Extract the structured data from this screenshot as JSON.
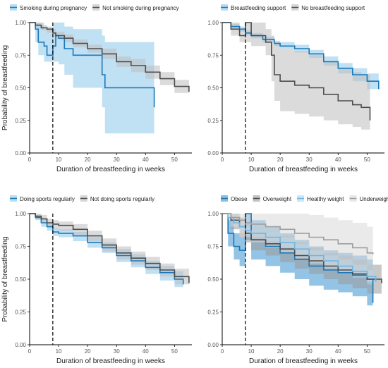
{
  "colors": {
    "blue": "#1a78b8",
    "dark": "#4d4d4d",
    "light_blue": "#7fc2ea",
    "light_gray": "#bdbdbd"
  },
  "chart_data": [
    {
      "type": "line",
      "xlabel": "Duration of breastfeeding in weeks",
      "ylabel": "Probability of breastfeeding",
      "xlim": [
        0,
        56
      ],
      "ylim": [
        0,
        1
      ],
      "xticks": [
        0,
        10,
        20,
        30,
        40,
        50
      ],
      "yticks": [
        "0.00",
        "0.25",
        "0.50",
        "0.75",
        "1.00"
      ],
      "vline_x": 8,
      "legend_position": "top",
      "series": [
        {
          "name": "Smoking during pregnancy",
          "color": "#1a78b8",
          "fill": "#8cc6ea",
          "x": [
            0,
            2,
            3,
            5,
            6,
            8,
            9,
            10,
            12,
            15,
            25,
            26,
            43
          ],
          "y": [
            1.0,
            0.95,
            0.85,
            0.82,
            0.75,
            0.82,
            0.9,
            0.88,
            0.8,
            0.75,
            0.6,
            0.5,
            0.35
          ],
          "lower": [
            1.0,
            0.85,
            0.75,
            0.7,
            0.7,
            0.7,
            0.7,
            0.68,
            0.6,
            0.5,
            0.35,
            0.15,
            0.15
          ],
          "upper": [
            1.0,
            1.0,
            1.0,
            0.95,
            0.95,
            1.0,
            1.0,
            1.0,
            0.97,
            0.95,
            0.9,
            0.85,
            0.85
          ]
        },
        {
          "name": "Not smoking during pregnancy",
          "color": "#4d4d4d",
          "fill": "#bdbdbd",
          "x": [
            0,
            2,
            4,
            6,
            8,
            9,
            12,
            15,
            20,
            25,
            30,
            35,
            40,
            45,
            50,
            55
          ],
          "y": [
            1.0,
            0.98,
            0.96,
            0.95,
            0.92,
            0.9,
            0.88,
            0.84,
            0.8,
            0.76,
            0.7,
            0.67,
            0.62,
            0.57,
            0.51,
            0.47
          ],
          "lower": [
            1.0,
            0.96,
            0.94,
            0.92,
            0.89,
            0.87,
            0.85,
            0.81,
            0.77,
            0.72,
            0.66,
            0.62,
            0.57,
            0.52,
            0.46,
            0.42
          ],
          "upper": [
            1.0,
            1.0,
            0.98,
            0.97,
            0.95,
            0.93,
            0.91,
            0.87,
            0.83,
            0.8,
            0.74,
            0.72,
            0.67,
            0.62,
            0.56,
            0.52
          ]
        }
      ]
    },
    {
      "type": "line",
      "xlabel": "Duration of breastfeeding in weeks",
      "ylabel": "",
      "xlim": [
        0,
        56
      ],
      "ylim": [
        0,
        1
      ],
      "xticks": [
        0,
        10,
        20,
        30,
        40,
        50
      ],
      "yticks": [
        "0.00",
        "0.25",
        "0.50",
        "0.75",
        "1.00"
      ],
      "vline_x": 8,
      "legend_position": "top",
      "series": [
        {
          "name": "Breastfeeding support",
          "color": "#1a78b8",
          "fill": "#8cc6ea",
          "x": [
            0,
            3,
            6,
            8,
            10,
            14,
            18,
            20,
            25,
            30,
            35,
            40,
            45,
            50,
            54
          ],
          "y": [
            1.0,
            0.97,
            0.95,
            0.92,
            0.9,
            0.87,
            0.84,
            0.82,
            0.8,
            0.76,
            0.7,
            0.65,
            0.6,
            0.55,
            0.49
          ],
          "lower": [
            1.0,
            0.95,
            0.93,
            0.9,
            0.88,
            0.85,
            0.82,
            0.8,
            0.77,
            0.73,
            0.67,
            0.61,
            0.55,
            0.49,
            0.43
          ],
          "upper": [
            1.0,
            0.99,
            0.97,
            0.94,
            0.92,
            0.89,
            0.86,
            0.85,
            0.83,
            0.79,
            0.74,
            0.69,
            0.65,
            0.61,
            0.55
          ]
        },
        {
          "name": "No breastfeeding support",
          "color": "#4d4d4d",
          "fill": "#bdbdbd",
          "x": [
            0,
            3,
            6,
            8,
            10,
            15,
            17,
            18,
            20,
            25,
            30,
            35,
            40,
            45,
            48,
            51
          ],
          "y": [
            1.0,
            0.95,
            0.9,
            1.0,
            0.9,
            0.85,
            0.75,
            0.6,
            0.55,
            0.52,
            0.5,
            0.45,
            0.4,
            0.37,
            0.35,
            0.25
          ],
          "lower": [
            1.0,
            0.9,
            0.85,
            0.85,
            0.82,
            0.75,
            0.55,
            0.4,
            0.32,
            0.3,
            0.28,
            0.25,
            0.22,
            0.2,
            0.18,
            0.15
          ],
          "upper": [
            1.0,
            1.0,
            0.95,
            1.0,
            1.0,
            0.95,
            0.9,
            0.85,
            0.8,
            0.78,
            0.75,
            0.7,
            0.65,
            0.62,
            0.6,
            0.55
          ]
        }
      ]
    },
    {
      "type": "line",
      "xlabel": "Duration of breastfeeding in weeks",
      "ylabel": "Probability of breastfeeding",
      "xlim": [
        0,
        56
      ],
      "ylim": [
        0,
        1
      ],
      "xticks": [
        0,
        10,
        20,
        30,
        40,
        50
      ],
      "yticks": [
        "0.00",
        "0.25",
        "0.50",
        "0.75",
        "1.00"
      ],
      "vline_x": 8,
      "legend_position": "top",
      "series": [
        {
          "name": "Doing sports regularly",
          "color": "#1a78b8",
          "fill": "#8cc6ea",
          "x": [
            0,
            2,
            4,
            6,
            8,
            10,
            15,
            20,
            25,
            30,
            35,
            40,
            45,
            50,
            53
          ],
          "y": [
            1.0,
            0.97,
            0.93,
            0.9,
            0.86,
            0.85,
            0.83,
            0.78,
            0.74,
            0.68,
            0.64,
            0.59,
            0.55,
            0.5,
            0.46
          ],
          "lower": [
            1.0,
            0.95,
            0.9,
            0.87,
            0.83,
            0.82,
            0.79,
            0.74,
            0.7,
            0.63,
            0.59,
            0.54,
            0.49,
            0.44,
            0.4
          ],
          "upper": [
            1.0,
            0.99,
            0.96,
            0.93,
            0.89,
            0.88,
            0.86,
            0.82,
            0.78,
            0.73,
            0.69,
            0.64,
            0.6,
            0.56,
            0.52
          ]
        },
        {
          "name": "Not doing sports regularly",
          "color": "#4d4d4d",
          "fill": "#bdbdbd",
          "x": [
            0,
            2,
            4,
            6,
            8,
            10,
            15,
            20,
            25,
            30,
            35,
            40,
            45,
            50,
            55
          ],
          "y": [
            1.0,
            0.98,
            0.96,
            0.93,
            0.92,
            0.91,
            0.88,
            0.83,
            0.76,
            0.7,
            0.66,
            0.62,
            0.57,
            0.52,
            0.47
          ],
          "lower": [
            1.0,
            0.96,
            0.93,
            0.9,
            0.88,
            0.87,
            0.84,
            0.79,
            0.71,
            0.65,
            0.61,
            0.57,
            0.52,
            0.46,
            0.41
          ],
          "upper": [
            1.0,
            1.0,
            0.99,
            0.96,
            0.95,
            0.94,
            0.92,
            0.87,
            0.81,
            0.75,
            0.71,
            0.67,
            0.62,
            0.58,
            0.53
          ]
        }
      ]
    },
    {
      "type": "line",
      "xlabel": "Duration of breastfeeding in weeks",
      "ylabel": "",
      "xlim": [
        0,
        56
      ],
      "ylim": [
        0,
        1
      ],
      "xticks": [
        0,
        10,
        20,
        30,
        40,
        50
      ],
      "yticks": [
        "0.00",
        "0.25",
        "0.50",
        "0.75",
        "1.00"
      ],
      "vline_x": 8,
      "legend_position": "top",
      "series": [
        {
          "name": "Obese",
          "color": "#1a78b8",
          "fill": "#3c93d0",
          "x": [
            0,
            2,
            4,
            6,
            8,
            10,
            15,
            20,
            25,
            30,
            35,
            40,
            45,
            50,
            52
          ],
          "y": [
            1.0,
            0.85,
            0.75,
            0.72,
            1.0,
            0.8,
            0.75,
            0.7,
            0.65,
            0.6,
            0.57,
            0.55,
            0.53,
            0.5,
            0.32
          ],
          "lower": [
            1.0,
            0.75,
            0.65,
            0.6,
            0.8,
            0.65,
            0.6,
            0.55,
            0.5,
            0.45,
            0.42,
            0.4,
            0.37,
            0.3,
            0.2
          ],
          "upper": [
            1.0,
            0.95,
            0.85,
            0.82,
            1.0,
            0.95,
            0.9,
            0.85,
            0.8,
            0.75,
            0.72,
            0.7,
            0.68,
            0.65,
            0.55
          ]
        },
        {
          "name": "Overweight",
          "color": "#4d4d4d",
          "fill": "#9a9a9a",
          "x": [
            0,
            3,
            6,
            8,
            10,
            15,
            20,
            25,
            30,
            35,
            40,
            45,
            50,
            55
          ],
          "y": [
            1.0,
            0.95,
            0.9,
            0.85,
            0.8,
            0.77,
            0.73,
            0.68,
            0.64,
            0.6,
            0.57,
            0.54,
            0.5,
            0.47
          ],
          "lower": [
            1.0,
            0.88,
            0.82,
            0.78,
            0.72,
            0.68,
            0.63,
            0.58,
            0.54,
            0.5,
            0.46,
            0.43,
            0.39,
            0.36
          ],
          "upper": [
            1.0,
            1.0,
            0.97,
            0.93,
            0.88,
            0.86,
            0.83,
            0.78,
            0.74,
            0.7,
            0.68,
            0.65,
            0.61,
            0.58
          ]
        },
        {
          "name": "Healthy weight",
          "color": "#6fb6e4",
          "fill": "#a6d5f1",
          "x": [
            0,
            2,
            4,
            6,
            8,
            10,
            15,
            20,
            25,
            30,
            35,
            40,
            45,
            50,
            53
          ],
          "y": [
            1.0,
            0.97,
            0.93,
            0.9,
            0.87,
            0.85,
            0.82,
            0.78,
            0.73,
            0.68,
            0.64,
            0.6,
            0.56,
            0.52,
            0.48
          ],
          "lower": [
            1.0,
            0.95,
            0.9,
            0.87,
            0.84,
            0.82,
            0.79,
            0.74,
            0.69,
            0.64,
            0.59,
            0.55,
            0.51,
            0.46,
            0.42
          ],
          "upper": [
            1.0,
            0.99,
            0.96,
            0.93,
            0.9,
            0.88,
            0.86,
            0.82,
            0.77,
            0.72,
            0.68,
            0.65,
            0.61,
            0.57,
            0.53
          ]
        },
        {
          "name": "Underweight",
          "color": "#9e9e9e",
          "fill": "#d9d9d9",
          "x": [
            0,
            3,
            6,
            8,
            10,
            15,
            20,
            25,
            30,
            35,
            40,
            45,
            50,
            52
          ],
          "y": [
            1.0,
            0.97,
            0.95,
            0.93,
            0.92,
            0.9,
            0.88,
            0.85,
            0.82,
            0.8,
            0.77,
            0.74,
            0.7,
            0.69
          ],
          "lower": [
            1.0,
            0.9,
            0.85,
            0.82,
            0.78,
            0.74,
            0.7,
            0.66,
            0.62,
            0.58,
            0.55,
            0.52,
            0.48,
            0.45
          ],
          "upper": [
            1.0,
            1.0,
            1.0,
            1.0,
            1.0,
            1.0,
            1.0,
            1.0,
            0.99,
            0.97,
            0.95,
            0.93,
            0.9,
            0.88
          ]
        }
      ]
    }
  ]
}
